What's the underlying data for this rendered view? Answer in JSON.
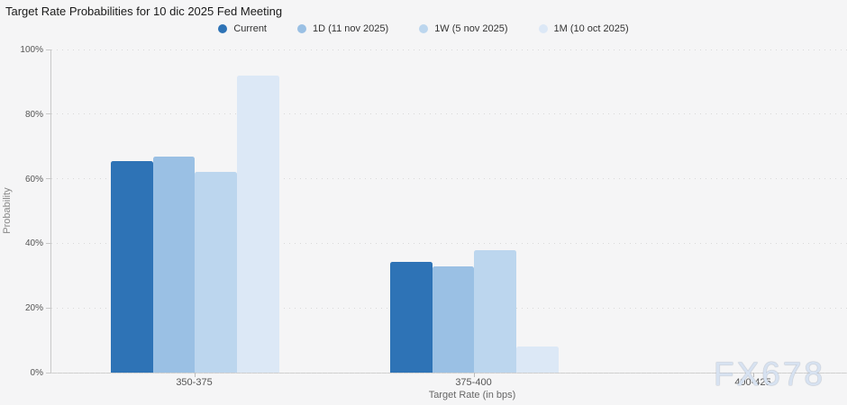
{
  "header": {
    "title": "Target Rate Probabilities for 10 dic 2025 Fed Meeting"
  },
  "watermark": "FX678",
  "colors": {
    "background": "#f5f5f6",
    "grid": "#d9d9d9",
    "axis": "#c9c9c9"
  },
  "chart_data": {
    "type": "bar",
    "title": "Target Rate Probabilities for 10 dic 2025 Fed Meeting",
    "categories": [
      "350-375",
      "375-400",
      "400-425"
    ],
    "series": [
      {
        "name": "Current",
        "color": "#2e73b6",
        "values": [
          65.6,
          34.4,
          0
        ]
      },
      {
        "name": "1D (11 nov 2025)",
        "color": "#9ac0e4",
        "values": [
          67.0,
          33.0,
          0
        ]
      },
      {
        "name": "1W (5 nov 2025)",
        "color": "#bcd6ee",
        "values": [
          62.0,
          38.0,
          0
        ]
      },
      {
        "name": "1M (10 oct 2025)",
        "color": "#dce8f6",
        "values": [
          92.0,
          8.0,
          0
        ]
      }
    ],
    "xlabel": "Target Rate (in bps)",
    "ylabel": "Probability",
    "ylim": [
      0,
      100
    ],
    "ytick_labels": [
      "0%",
      "20%",
      "40%",
      "60%",
      "80%",
      "100%"
    ],
    "grid": true,
    "legend_position": "top"
  }
}
